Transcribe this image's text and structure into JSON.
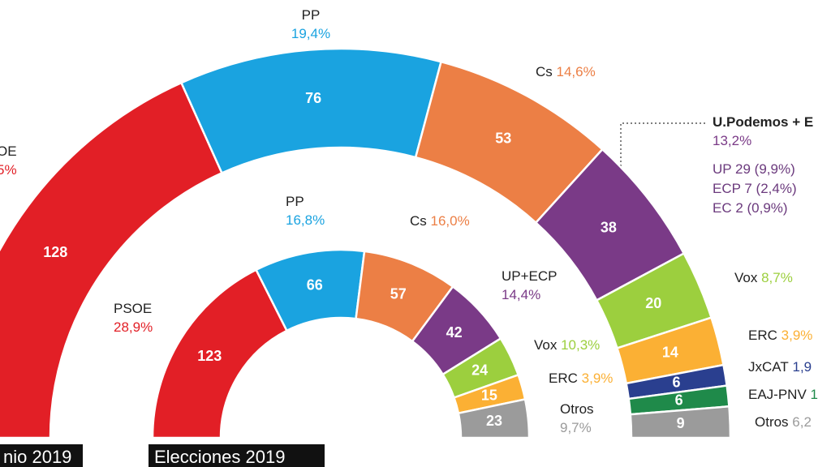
{
  "chart_data": [
    {
      "type": "hemicycle",
      "title": "nio 2019",
      "categories": [
        "OE",
        "PP",
        "Cs",
        "U.Podemos + E",
        "Vox",
        "ERC",
        "JxCAT",
        "EAJ-PNV",
        "Otros"
      ],
      "values": [
        128,
        76,
        53,
        38,
        20,
        14,
        6,
        6,
        9
      ],
      "share_labels": [
        "5%",
        "19,4%",
        "14,6%",
        "13,2%",
        "8,7%",
        "3,9%",
        "1,9",
        "1",
        "6,2"
      ],
      "colors": [
        "#e21f26",
        "#1aa3e0",
        "#ec7f45",
        "#7a3a87",
        "#9ccf3e",
        "#fbb034",
        "#2a3f8f",
        "#1f8a4a",
        "#9b9b9b"
      ],
      "annotations": [
        "UP 29 (9,9%)",
        "ECP 7 (2,4%)",
        "EC 2 (0,9%)"
      ]
    },
    {
      "type": "hemicycle",
      "title": "Elecciones 2019",
      "categories": [
        "PSOE",
        "PP",
        "Cs",
        "UP+ECP",
        "Vox",
        "ERC",
        "Otros"
      ],
      "values": [
        123,
        66,
        57,
        42,
        24,
        15,
        23
      ],
      "share_labels": [
        "28,9%",
        "16,8%",
        "16,0%",
        "14,4%",
        "10,3%",
        "3,9%",
        "9,7%"
      ],
      "colors": [
        "#e21f26",
        "#1aa3e0",
        "#ec7f45",
        "#7a3a87",
        "#9ccf3e",
        "#fbb034",
        "#9b9b9b"
      ]
    }
  ]
}
